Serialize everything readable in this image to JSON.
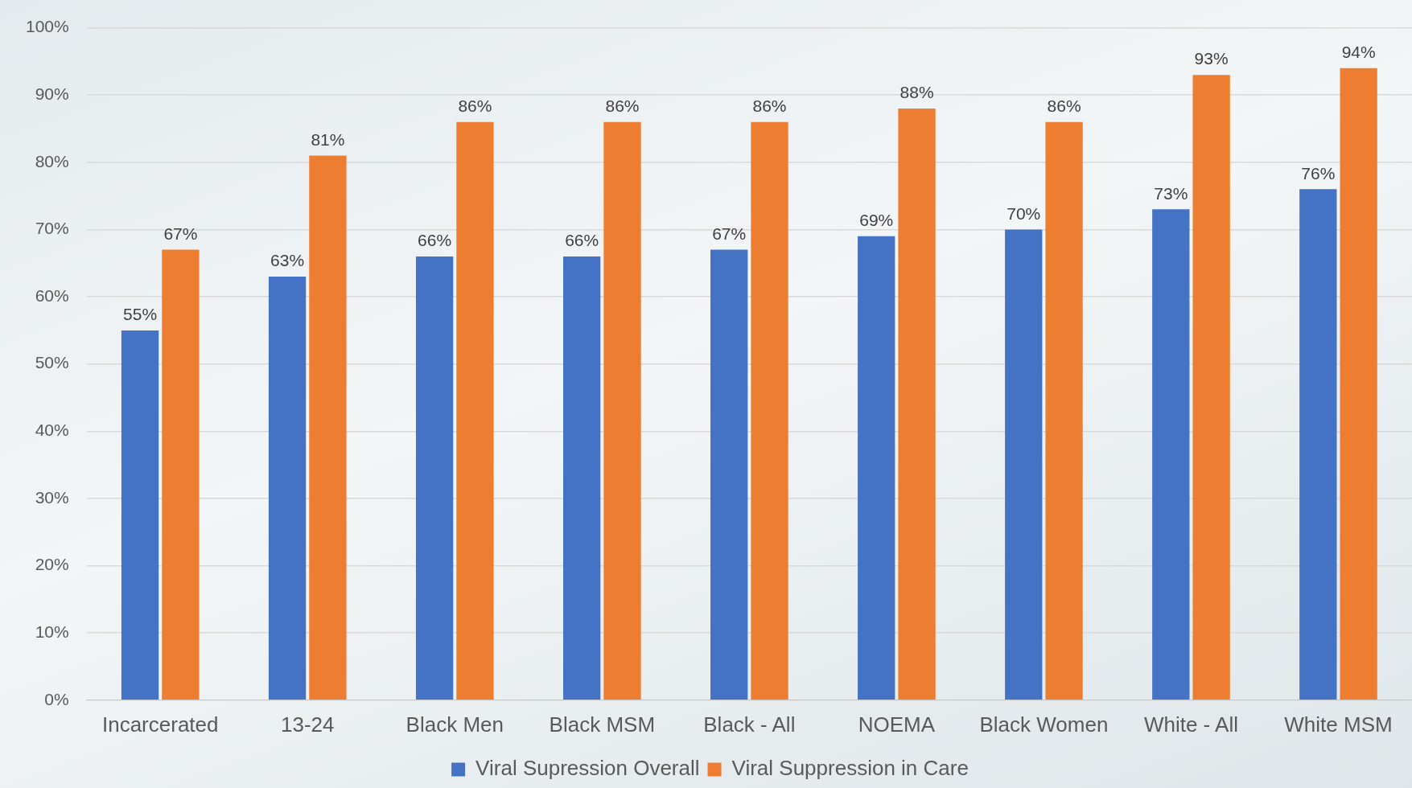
{
  "chart_data": {
    "type": "bar",
    "categories": [
      "Incarcerated",
      "13-24",
      "Black Men",
      "Black MSM",
      "Black - All",
      "NOEMA",
      "Black Women",
      "White - All",
      "White MSM"
    ],
    "series": [
      {
        "name": "Viral Supression Overall",
        "color": "#4472c4",
        "values": [
          55,
          63,
          66,
          66,
          67,
          69,
          70,
          73,
          76
        ],
        "value_labels": [
          "55%",
          "63%",
          "66%",
          "66%",
          "67%",
          "69%",
          "70%",
          "73%",
          "76%"
        ]
      },
      {
        "name": "Viral Suppression in Care",
        "color": "#ed7d31",
        "values": [
          67,
          81,
          86,
          86,
          86,
          88,
          86,
          93,
          94
        ],
        "value_labels": [
          "67%",
          "81%",
          "86%",
          "86%",
          "86%",
          "88%",
          "86%",
          "93%",
          "94%"
        ]
      }
    ],
    "ylim": [
      0,
      100
    ],
    "yticks": [
      {
        "value": 0,
        "label": "0%"
      },
      {
        "value": 10,
        "label": "10%"
      },
      {
        "value": 20,
        "label": "20%"
      },
      {
        "value": 30,
        "label": "30%"
      },
      {
        "value": 40,
        "label": "40%"
      },
      {
        "value": 50,
        "label": "50%"
      },
      {
        "value": 60,
        "label": "60%"
      },
      {
        "value": 70,
        "label": "70%"
      },
      {
        "value": 80,
        "label": "80%"
      },
      {
        "value": 90,
        "label": "90%"
      },
      {
        "value": 100,
        "label": "100%"
      }
    ],
    "grid": "y",
    "legend": "bottom"
  }
}
